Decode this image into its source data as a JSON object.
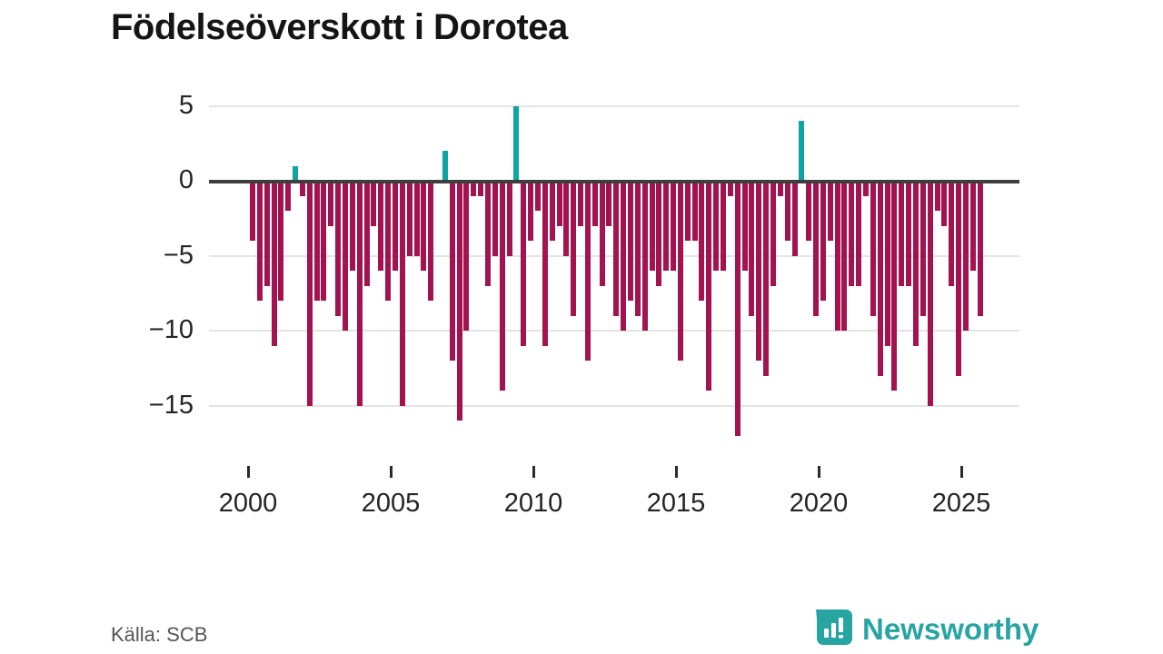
{
  "title": "Födelseöverskott i Dorotea",
  "source": {
    "text": "Källa: SCB"
  },
  "logo": {
    "brand": "Newsworthy"
  },
  "chart_data": {
    "type": "bar",
    "title": "Födelseöverskott i Dorotea",
    "frequency": "quarterly",
    "start_year": 2000,
    "start_quarter": 1,
    "series": [
      {
        "name": "Födelseöverskott",
        "values": [
          -4,
          -8,
          -7,
          -11,
          -8,
          -2,
          1,
          -1,
          -15,
          -8,
          -8,
          -3,
          -9,
          -10,
          -6,
          -15,
          -7,
          -3,
          -6,
          -8,
          -6,
          -15,
          -5,
          -5,
          -6,
          -8,
          0,
          2,
          -12,
          -16,
          -10,
          -1,
          -1,
          -7,
          -5,
          -14,
          -5,
          5,
          -11,
          -4,
          -2,
          -11,
          -4,
          -3,
          -5,
          -9,
          -3,
          -12,
          -3,
          -7,
          -3,
          -9,
          -10,
          -8,
          -9,
          -10,
          -6,
          -7,
          -6,
          -6,
          -12,
          -4,
          -4,
          -8,
          -14,
          -6,
          -6,
          -1,
          -17,
          -6,
          -9,
          -12,
          -13,
          -7,
          -1,
          -4,
          -5,
          4,
          -4,
          -9,
          -8,
          -4,
          -10,
          -10,
          -7,
          -7,
          -1,
          -9,
          -13,
          -11,
          -14,
          -7,
          -7,
          -11,
          -9,
          -15,
          -2,
          -3,
          -7,
          -13,
          -10,
          -6,
          -9
        ]
      }
    ],
    "x_ticks": [
      2000,
      2005,
      2010,
      2015,
      2020,
      2025
    ],
    "x_tick_labels": [
      "2000",
      "2005",
      "2010",
      "2015",
      "2020",
      "2025"
    ],
    "y_ticks": [
      5,
      0,
      -5,
      -10,
      -15
    ],
    "y_tick_labels": [
      "5",
      "0",
      "−5",
      "−10",
      "−15"
    ],
    "ylim": [
      -17.5,
      5.5
    ],
    "grid": "horizontal",
    "legend": "none",
    "colors": {
      "positive": "#0fa3a3",
      "negative": "#a21350"
    }
  },
  "layout_note": "quarterly bars 2000Q1–2025Q3"
}
